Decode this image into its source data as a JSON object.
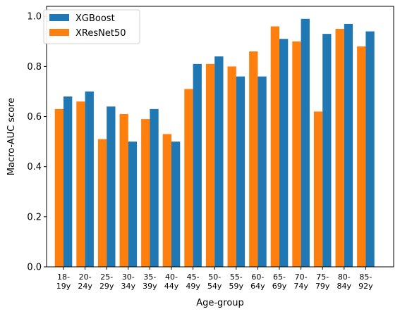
{
  "chart_data": {
    "type": "bar",
    "xlabel": "Age-group",
    "ylabel": "Macro-AUC score",
    "ylim": [
      0,
      1.04
    ],
    "yticks": [
      "0.0",
      "0.2",
      "0.4",
      "0.6",
      "0.8",
      "1.0"
    ],
    "categories": [
      [
        "18-",
        "19y"
      ],
      [
        "20-",
        "24y"
      ],
      [
        "25-",
        "29y"
      ],
      [
        "30-",
        "34y"
      ],
      [
        "35-",
        "39y"
      ],
      [
        "40-",
        "44y"
      ],
      [
        "45-",
        "49y"
      ],
      [
        "50-",
        "54y"
      ],
      [
        "55-",
        "59y"
      ],
      [
        "60-",
        "64y"
      ],
      [
        "65-",
        "69y"
      ],
      [
        "70-",
        "74y"
      ],
      [
        "75-",
        "79y"
      ],
      [
        "80-",
        "84y"
      ],
      [
        "85-",
        "92y"
      ]
    ],
    "series": [
      {
        "name": "XResNet50",
        "color": "#ff7f0e",
        "values": [
          0.63,
          0.66,
          0.51,
          0.61,
          0.59,
          0.53,
          0.71,
          0.81,
          0.8,
          0.86,
          0.96,
          0.9,
          0.62,
          0.95,
          0.88
        ]
      },
      {
        "name": "XGBoost",
        "color": "#1f77b4",
        "values": [
          0.68,
          0.7,
          0.64,
          0.5,
          0.63,
          0.5,
          0.81,
          0.84,
          0.76,
          0.76,
          0.91,
          0.99,
          0.93,
          0.97,
          0.94
        ]
      }
    ],
    "legend": {
      "position": "top-left",
      "order": [
        "XGBoost",
        "XResNet50"
      ]
    },
    "grid": false
  }
}
